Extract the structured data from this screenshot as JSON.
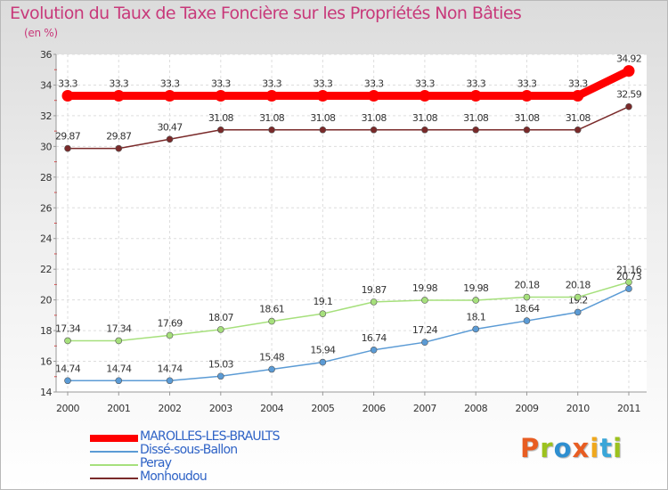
{
  "header": {
    "title": "Evolution du Taux de Taxe Foncière sur les Propriétés Non Bâties",
    "subtitle": "(en %)"
  },
  "brand": {
    "text": "Proxiti",
    "letter_colors": [
      "#e85d22",
      "#9cc21e",
      "#2f8fd0",
      "#e85d22",
      "#f0a81c",
      "#3aa6d8",
      "#9cc21e"
    ]
  },
  "chart_data": {
    "type": "line",
    "categories": [
      "2000",
      "2001",
      "2002",
      "2003",
      "2004",
      "2005",
      "2006",
      "2007",
      "2008",
      "2009",
      "2010",
      "2011"
    ],
    "ylim": [
      14,
      36
    ],
    "yticks": [
      14,
      16,
      18,
      20,
      22,
      24,
      26,
      28,
      30,
      32,
      34,
      36
    ],
    "grid": true,
    "legend_position": "bottom-left",
    "series": [
      {
        "name": "MAROLLES-LES-BRAULTS",
        "color": "#ff0000",
        "values": [
          33.3,
          33.3,
          33.3,
          33.3,
          33.3,
          33.3,
          33.3,
          33.3,
          33.3,
          33.3,
          33.3,
          34.92
        ],
        "labels": [
          "33.3",
          "33.3",
          "33.3",
          "33.3",
          "33.3",
          "33.3",
          "33.3",
          "33.3",
          "33.3",
          "33.3",
          "33.3",
          "34.92"
        ]
      },
      {
        "name": "Dissé-sous-Ballon",
        "color": "#5b9bd5",
        "values": [
          14.74,
          14.74,
          14.74,
          15.03,
          15.48,
          15.94,
          16.74,
          17.24,
          18.1,
          18.64,
          19.2,
          20.73
        ],
        "labels": [
          "14.74",
          "14.74",
          "14.74",
          "15.03",
          "15.48",
          "15.94",
          "16.74",
          "17.24",
          "18.1",
          "18.64",
          "19.2",
          "20.73"
        ]
      },
      {
        "name": "Peray",
        "color": "#a6e07c",
        "values": [
          17.34,
          17.34,
          17.69,
          18.07,
          18.61,
          19.1,
          19.87,
          19.98,
          19.98,
          20.18,
          20.18,
          21.16
        ],
        "labels": [
          "17.34",
          "17.34",
          "17.69",
          "18.07",
          "18.61",
          "19.1",
          "19.87",
          "19.98",
          "19.98",
          "20.18",
          "20.18",
          "21.16"
        ]
      },
      {
        "name": "Monhoudou",
        "color": "#7a2a2a",
        "values": [
          29.87,
          29.87,
          30.47,
          31.08,
          31.08,
          31.08,
          31.08,
          31.08,
          31.08,
          31.08,
          31.08,
          32.59
        ],
        "labels": [
          "29.87",
          "29.87",
          "30.47",
          "31.08",
          "31.08",
          "31.08",
          "31.08",
          "31.08",
          "31.08",
          "31.08",
          "31.08",
          "32.59"
        ]
      }
    ]
  }
}
